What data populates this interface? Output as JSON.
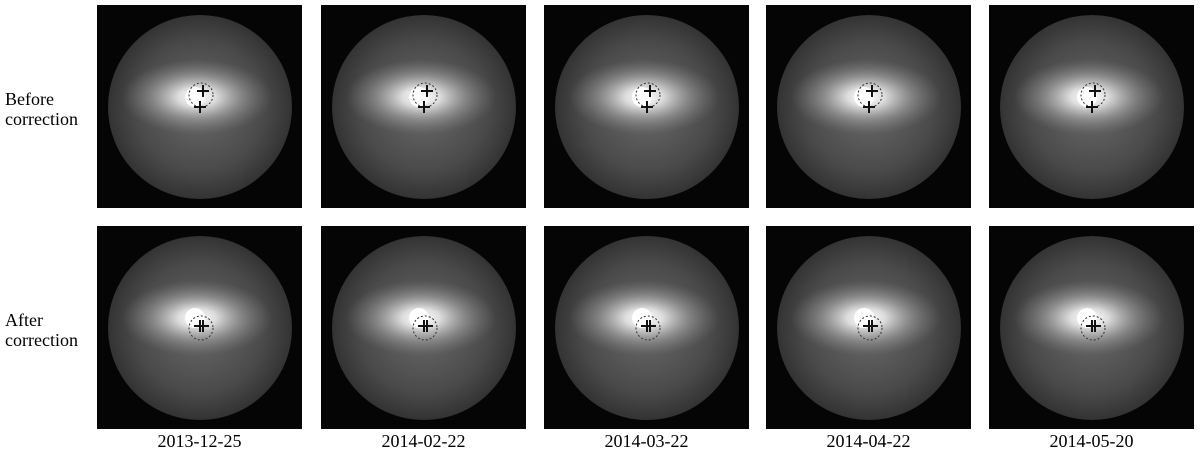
{
  "row_labels": [
    [
      "Before",
      "correction"
    ],
    [
      "After",
      "correction"
    ]
  ],
  "column_labels": [
    "2013-12-25",
    "2014-02-22",
    "2014-03-22",
    "2014-04-22",
    "2014-05-20"
  ]
}
